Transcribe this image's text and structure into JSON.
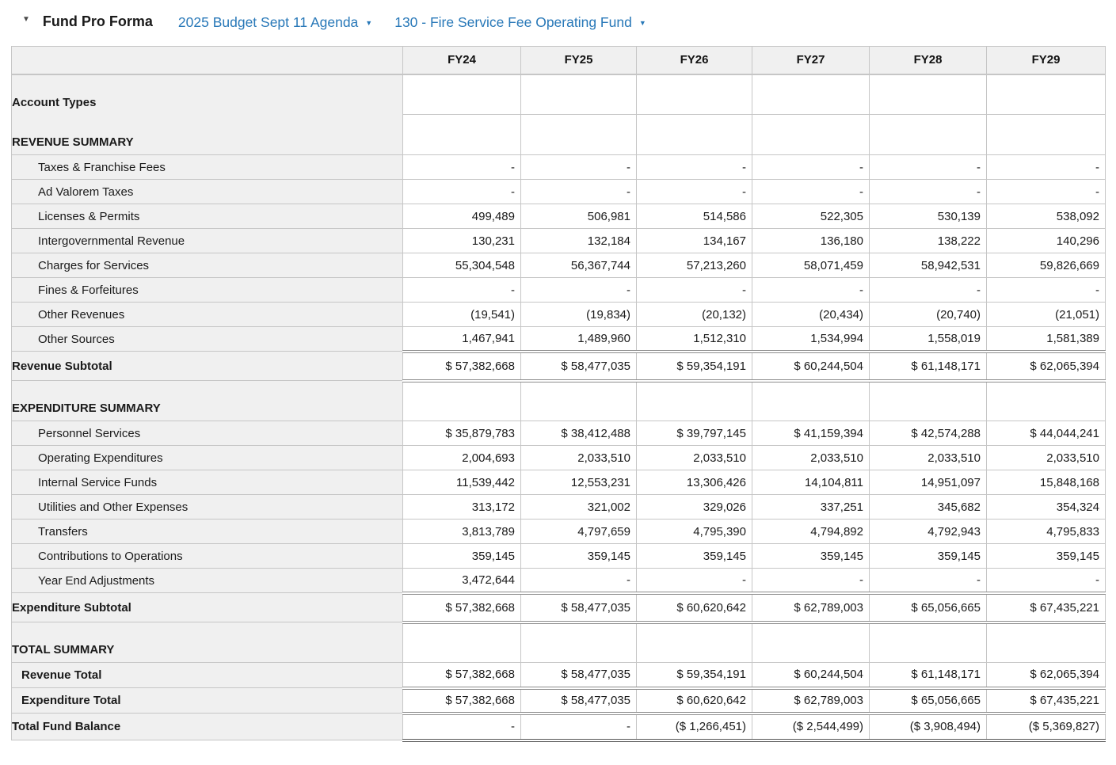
{
  "header": {
    "collapse_icon": "▼",
    "title": "Fund Pro Forma",
    "budget_dropdown": {
      "label": "2025 Budget Sept 11 Agenda",
      "caret": "▼"
    },
    "fund_dropdown": {
      "label": "130 - Fire Service Fee Operating Fund",
      "caret": "▼"
    }
  },
  "colors": {
    "link_blue": "#2878b8",
    "panel_gray": "#f0f0f0",
    "grid_line": "#c6c6c6",
    "text": "#1a1a1a"
  },
  "table": {
    "columns": [
      "FY24",
      "FY25",
      "FY26",
      "FY27",
      "FY28",
      "FY29"
    ],
    "rows": [
      {
        "label": "Account Types",
        "type": "section",
        "values": [
          "",
          "",
          "",
          "",
          "",
          ""
        ]
      },
      {
        "label": "REVENUE SUMMARY",
        "type": "section",
        "values": [
          "",
          "",
          "",
          "",
          "",
          ""
        ]
      },
      {
        "label": "Taxes & Franchise Fees",
        "type": "detail",
        "values": [
          "-",
          "-",
          "-",
          "-",
          "-",
          "-"
        ]
      },
      {
        "label": "Ad Valorem Taxes",
        "type": "detail",
        "values": [
          "-",
          "-",
          "-",
          "-",
          "-",
          "-"
        ]
      },
      {
        "label": "Licenses & Permits",
        "type": "detail",
        "values": [
          "499,489",
          "506,981",
          "514,586",
          "522,305",
          "530,139",
          "538,092"
        ]
      },
      {
        "label": "Intergovernmental Revenue",
        "type": "detail",
        "values": [
          "130,231",
          "132,184",
          "134,167",
          "136,180",
          "138,222",
          "140,296"
        ]
      },
      {
        "label": "Charges for Services",
        "type": "detail",
        "values": [
          "55,304,548",
          "56,367,744",
          "57,213,260",
          "58,071,459",
          "58,942,531",
          "59,826,669"
        ]
      },
      {
        "label": "Fines & Forfeitures",
        "type": "detail",
        "values": [
          "-",
          "-",
          "-",
          "-",
          "-",
          "-"
        ]
      },
      {
        "label": "Other Revenues",
        "type": "detail",
        "values": [
          "(19,541)",
          "(19,834)",
          "(20,132)",
          "(20,434)",
          "(20,740)",
          "(21,051)"
        ]
      },
      {
        "label": "Other Sources",
        "type": "detail",
        "values": [
          "1,467,941",
          "1,489,960",
          "1,512,310",
          "1,534,994",
          "1,558,019",
          "1,581,389"
        ]
      },
      {
        "label": "Revenue Subtotal",
        "type": "subtotal",
        "values": [
          "$ 57,382,668",
          "$ 58,477,035",
          "$ 59,354,191",
          "$ 60,244,504",
          "$ 61,148,171",
          "$ 62,065,394"
        ]
      },
      {
        "label": "EXPENDITURE SUMMARY",
        "type": "section",
        "values": [
          "",
          "",
          "",
          "",
          "",
          ""
        ]
      },
      {
        "label": "Personnel Services",
        "type": "detail",
        "values": [
          "$ 35,879,783",
          "$ 38,412,488",
          "$ 39,797,145",
          "$ 41,159,394",
          "$ 42,574,288",
          "$ 44,044,241"
        ]
      },
      {
        "label": "Operating Expenditures",
        "type": "detail",
        "values": [
          "2,004,693",
          "2,033,510",
          "2,033,510",
          "2,033,510",
          "2,033,510",
          "2,033,510"
        ]
      },
      {
        "label": "Internal Service Funds",
        "type": "detail",
        "values": [
          "11,539,442",
          "12,553,231",
          "13,306,426",
          "14,104,811",
          "14,951,097",
          "15,848,168"
        ]
      },
      {
        "label": "Utilities and Other Expenses",
        "type": "detail",
        "values": [
          "313,172",
          "321,002",
          "329,026",
          "337,251",
          "345,682",
          "354,324"
        ]
      },
      {
        "label": "Transfers",
        "type": "detail",
        "values": [
          "3,813,789",
          "4,797,659",
          "4,795,390",
          "4,794,892",
          "4,792,943",
          "4,795,833"
        ]
      },
      {
        "label": "Contributions to Operations",
        "type": "detail",
        "values": [
          "359,145",
          "359,145",
          "359,145",
          "359,145",
          "359,145",
          "359,145"
        ]
      },
      {
        "label": "Year End Adjustments",
        "type": "detail",
        "values": [
          "3,472,644",
          "-",
          "-",
          "-",
          "-",
          "-"
        ]
      },
      {
        "label": "Expenditure Subtotal",
        "type": "subtotal",
        "values": [
          "$ 57,382,668",
          "$ 58,477,035",
          "$ 60,620,642",
          "$ 62,789,003",
          "$ 65,056,665",
          "$ 67,435,221"
        ]
      },
      {
        "label": "TOTAL SUMMARY",
        "type": "section",
        "values": [
          "",
          "",
          "",
          "",
          "",
          ""
        ]
      },
      {
        "label": "Revenue Total",
        "type": "total",
        "values": [
          "$ 57,382,668",
          "$ 58,477,035",
          "$ 59,354,191",
          "$ 60,244,504",
          "$ 61,148,171",
          "$ 62,065,394"
        ]
      },
      {
        "label": "Expenditure Total",
        "type": "total",
        "values": [
          "$ 57,382,668",
          "$ 58,477,035",
          "$ 60,620,642",
          "$ 62,789,003",
          "$ 65,056,665",
          "$ 67,435,221"
        ]
      },
      {
        "label": "Total Fund Balance",
        "type": "grand",
        "values": [
          "-",
          "-",
          "($ 1,266,451)",
          "($ 2,544,499)",
          "($ 3,908,494)",
          "($ 5,369,827)"
        ]
      }
    ]
  }
}
